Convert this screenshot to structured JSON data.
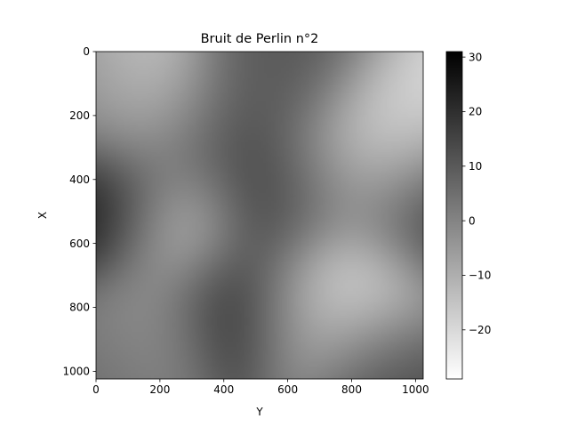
{
  "chart_data": {
    "type": "heatmap",
    "title": "Bruit de Perlin n°2",
    "xlabel": "Y",
    "ylabel": "X",
    "x_range": [
      0,
      1024
    ],
    "y_range": [
      0,
      1024
    ],
    "y_inverted": true,
    "x_ticks": [
      "0",
      "200",
      "400",
      "600",
      "800",
      "1000"
    ],
    "x_tick_values": [
      0,
      200,
      400,
      600,
      800,
      1000
    ],
    "y_ticks": [
      "0",
      "200",
      "400",
      "600",
      "800",
      "1000"
    ],
    "y_tick_values": [
      0,
      200,
      400,
      600,
      800,
      1000
    ],
    "colormap": "gray_r",
    "color_low": "#ffffff",
    "color_high": "#000000",
    "colorbar": {
      "range": [
        -29,
        31
      ],
      "ticks": [
        "30",
        "20",
        "10",
        "0",
        "−10",
        "−20"
      ],
      "tick_values": [
        30,
        20,
        10,
        0,
        -10,
        -20
      ]
    },
    "grid": false,
    "field_extrema": [
      {
        "x": 40,
        "y": 500,
        "value": 30
      },
      {
        "x": 430,
        "y": 800,
        "value": 31
      },
      {
        "x": 560,
        "y": 460,
        "value": 26
      },
      {
        "x": 1000,
        "y": 500,
        "value": 24
      },
      {
        "x": 330,
        "y": 260,
        "value": 16
      },
      {
        "x": 660,
        "y": 80,
        "value": 14
      },
      {
        "x": 520,
        "y": 60,
        "value": 8
      },
      {
        "x": 80,
        "y": 960,
        "value": 10
      },
      {
        "x": 880,
        "y": 960,
        "value": 14
      },
      {
        "x": 40,
        "y": 160,
        "value": 2
      },
      {
        "x": 180,
        "y": 130,
        "value": -26
      },
      {
        "x": 270,
        "y": 540,
        "value": -24
      },
      {
        "x": 820,
        "y": 720,
        "value": -29
      },
      {
        "x": 880,
        "y": 210,
        "value": -24
      },
      {
        "x": 900,
        "y": 330,
        "value": -18
      },
      {
        "x": 640,
        "y": 820,
        "value": -14
      },
      {
        "x": 170,
        "y": 880,
        "value": -12
      },
      {
        "x": 700,
        "y": 420,
        "value": -4
      }
    ]
  }
}
